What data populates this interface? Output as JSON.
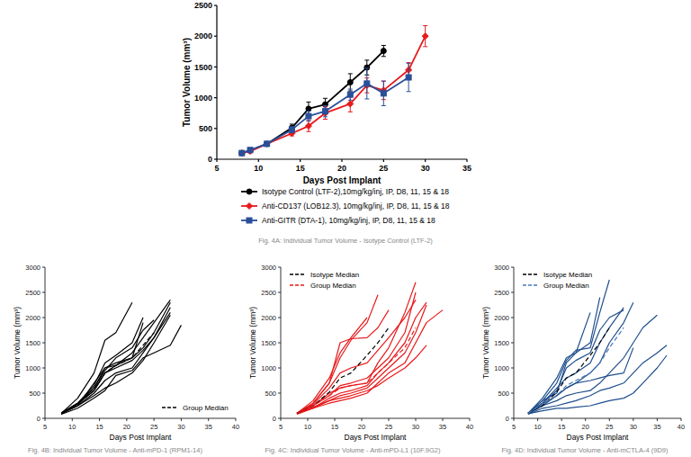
{
  "chart_data": [
    {
      "type": "line",
      "title": "Fig. 4A: Individual Tumor Volume - Isotype Control (LTF-2)",
      "x_label": "Days Post Implant",
      "y_label": "Tumor Volume (mm³)",
      "xlim": [
        5,
        35
      ],
      "ylim": [
        0,
        2500
      ],
      "xticks": [
        5,
        10,
        15,
        20,
        25,
        30,
        35
      ],
      "yticks": [
        0,
        500,
        1000,
        1500,
        2000,
        2500
      ],
      "grid": false,
      "legend": "bottom",
      "series": [
        {
          "name": "Isotype Control (LTF-2),10mg/kg/inj, IP, D8, 11, 15 & 18",
          "color": "#000000",
          "marker": "circle",
          "x": [
            8,
            9,
            11,
            14,
            16,
            18,
            21,
            23,
            25
          ],
          "values": [
            100,
            140,
            250,
            510,
            820,
            890,
            1250,
            1490,
            1760
          ],
          "errors": [
            20,
            25,
            30,
            60,
            110,
            100,
            140,
            120,
            90
          ]
        },
        {
          "name": "Anti-CD137 (LOB12.3), 10mg/kg/inj, IP, D8, 11, 15 & 18",
          "color": "#e8191b",
          "marker": "diamond",
          "x": [
            8,
            9,
            11,
            14,
            16,
            18,
            21,
            23,
            25,
            28,
            30
          ],
          "values": [
            100,
            130,
            250,
            420,
            540,
            750,
            900,
            1200,
            1120,
            1450,
            2000
          ],
          "errors": [
            10,
            15,
            20,
            40,
            90,
            100,
            130,
            120,
            150,
            120,
            170
          ]
        },
        {
          "name": "Anti-GITR (DTA-1), 10mg/kg/inj, IP, D8, 11, 15 & 18",
          "color": "#2a4f9a",
          "marker": "square",
          "x": [
            8,
            9,
            11,
            14,
            16,
            18,
            21,
            23,
            25,
            28
          ],
          "values": [
            100,
            150,
            250,
            480,
            700,
            780,
            1050,
            1230,
            1070,
            1330
          ],
          "errors": [
            10,
            15,
            20,
            50,
            80,
            90,
            90,
            250,
            200,
            230
          ]
        }
      ]
    },
    {
      "type": "line",
      "title": "Fig. 4B: Individual Tumor Volume - Anti-mPD-1 (RPM1-14)",
      "x_label": "Days Post Implant",
      "y_label": "Tumor Volume (mm³)",
      "xlim": [
        5,
        40
      ],
      "ylim": [
        0,
        3000
      ],
      "xticks": [
        5,
        10,
        15,
        20,
        25,
        30,
        35,
        40
      ],
      "yticks": [
        0,
        500,
        1000,
        1500,
        2000,
        2500,
        3000
      ],
      "grid": false,
      "legend": "lower right",
      "series": [
        {
          "color": "#000000",
          "x": [
            8,
            11,
            14,
            16,
            18,
            21
          ],
          "values": [
            100,
            400,
            900,
            1550,
            1700,
            2300
          ]
        },
        {
          "color": "#000000",
          "x": [
            8,
            11,
            14,
            16,
            18,
            21,
            23,
            25,
            28
          ],
          "values": [
            100,
            300,
            600,
            1000,
            1050,
            1300,
            1600,
            1900,
            2350
          ]
        },
        {
          "color": "#000000",
          "x": [
            8,
            11,
            14,
            16,
            18,
            21,
            23,
            25,
            28
          ],
          "values": [
            90,
            280,
            550,
            900,
            1050,
            1200,
            1400,
            1700,
            2300
          ]
        },
        {
          "color": "#000000",
          "x": [
            8,
            11,
            14,
            16,
            18,
            21,
            23
          ],
          "values": [
            100,
            300,
            650,
            1100,
            1250,
            1500,
            2000
          ]
        },
        {
          "color": "#000000",
          "x": [
            8,
            11,
            14,
            16,
            18,
            21,
            23,
            25,
            28
          ],
          "values": [
            100,
            250,
            500,
            750,
            900,
            1000,
            1300,
            1600,
            2200
          ]
        },
        {
          "color": "#000000",
          "x": [
            8,
            11,
            14,
            16,
            18,
            21,
            23,
            25,
            28,
            30
          ],
          "values": [
            80,
            200,
            400,
            550,
            850,
            950,
            1200,
            1300,
            1450,
            1850
          ]
        },
        {
          "color": "#000000",
          "x": [
            8,
            11,
            14,
            16,
            18,
            21,
            23,
            25,
            28
          ],
          "values": [
            100,
            250,
            450,
            600,
            700,
            900,
            1150,
            1500,
            2050
          ]
        },
        {
          "color": "#000000",
          "x": [
            8,
            11,
            14,
            16,
            18,
            21,
            23,
            25,
            28
          ],
          "values": [
            110,
            300,
            550,
            900,
            1000,
            1150,
            1350,
            1600,
            2100
          ]
        },
        {
          "color": "#000000",
          "x": [
            8,
            11,
            14,
            16,
            18,
            21,
            23
          ],
          "values": [
            90,
            250,
            700,
            1000,
            1100,
            1200,
            1900
          ]
        },
        {
          "color": "#000000",
          "x": [
            8,
            11,
            14,
            16,
            18,
            21,
            23,
            25
          ],
          "values": [
            100,
            300,
            600,
            950,
            1200,
            1400,
            1750,
            1950
          ]
        },
        {
          "name": "Group Median",
          "color": "#000000",
          "line_style": "dashed",
          "x": [
            8,
            11,
            14,
            16,
            18,
            21,
            23,
            25
          ],
          "values": [
            100,
            290,
            560,
            900,
            1050,
            1200,
            1450,
            1700
          ]
        }
      ]
    },
    {
      "type": "line",
      "title": "Fig. 4C: Individual Tumor Volume - Anti-mPD-L1 (10F.9G2)",
      "x_label": "Days Post Implant",
      "y_label": "Tumor Volume (mm³)",
      "xlim": [
        5,
        40
      ],
      "ylim": [
        0,
        3000
      ],
      "xticks": [
        5,
        10,
        15,
        20,
        25,
        30,
        35,
        40
      ],
      "yticks": [
        0,
        500,
        1000,
        1500,
        2000,
        2500,
        3000
      ],
      "grid": false,
      "legend": "upper left",
      "series": [
        {
          "color": "#e8191b",
          "x": [
            8,
            11,
            14,
            16,
            18,
            21,
            23
          ],
          "values": [
            100,
            300,
            700,
            1200,
            1550,
            1900,
            2450
          ]
        },
        {
          "color": "#e8191b",
          "x": [
            8,
            11,
            14,
            16,
            18,
            21,
            23,
            25,
            28,
            30
          ],
          "values": [
            100,
            250,
            500,
            600,
            650,
            700,
            1100,
            1400,
            2100,
            2700
          ]
        },
        {
          "color": "#e8191b",
          "x": [
            8,
            11,
            14,
            16,
            18,
            21,
            23,
            25,
            28,
            30,
            32
          ],
          "values": [
            90,
            200,
            400,
            500,
            550,
            650,
            900,
            1100,
            1500,
            2000,
            2300
          ]
        },
        {
          "color": "#e8191b",
          "x": [
            8,
            11,
            14,
            16,
            18,
            21,
            23,
            25,
            28,
            30,
            32,
            35
          ],
          "values": [
            80,
            200,
            300,
            350,
            400,
            500,
            700,
            900,
            1100,
            1500,
            1900,
            2150
          ]
        },
        {
          "color": "#e8191b",
          "x": [
            8,
            11,
            14,
            16,
            18,
            21,
            23,
            25
          ],
          "values": [
            100,
            300,
            700,
            1500,
            1580,
            1600,
            1800,
            2150
          ]
        },
        {
          "color": "#e8191b",
          "x": [
            8,
            11,
            14,
            16,
            18,
            21,
            23,
            25,
            28,
            30
          ],
          "values": [
            100,
            250,
            450,
            650,
            700,
            800,
            1000,
            1200,
            1700,
            2500
          ]
        },
        {
          "color": "#e8191b",
          "x": [
            8,
            11,
            14,
            16,
            18,
            21,
            23,
            25,
            28,
            30,
            32
          ],
          "values": [
            100,
            200,
            350,
            450,
            500,
            600,
            800,
            1000,
            1300,
            1700,
            2250
          ]
        },
        {
          "color": "#e8191b",
          "x": [
            8,
            11,
            14,
            16,
            18,
            21,
            23,
            25,
            28,
            30,
            32
          ],
          "values": [
            90,
            220,
            350,
            400,
            450,
            550,
            650,
            800,
            1000,
            1200,
            1450
          ]
        },
        {
          "color": "#e8191b",
          "x": [
            8,
            11,
            14,
            16,
            18,
            21,
            23,
            25,
            28,
            30
          ],
          "values": [
            100,
            280,
            600,
            900,
            1000,
            1100,
            1350,
            1600,
            2000,
            2350
          ]
        },
        {
          "color": "#e8191b",
          "x": [
            8,
            11,
            14,
            16,
            18,
            21
          ],
          "values": [
            100,
            350,
            800,
            1300,
            1600,
            2000
          ]
        },
        {
          "name": "Isotype Median",
          "color": "#000000",
          "line_style": "dashed",
          "x": [
            8,
            11,
            14,
            16,
            18,
            21,
            23,
            25
          ],
          "values": [
            100,
            250,
            520,
            800,
            900,
            1250,
            1500,
            1800
          ]
        },
        {
          "name": "Group Median",
          "color": "#e8191b",
          "line_style": "dashed",
          "x": [
            8,
            11,
            14,
            16,
            18,
            21,
            23,
            25,
            28,
            30
          ],
          "values": [
            100,
            250,
            450,
            600,
            650,
            700,
            900,
            1100,
            1400,
            1800
          ]
        }
      ]
    },
    {
      "type": "line",
      "title": "Fig. 4D: Individual Tumor Volume - Anti-mCTLA-4 (9D9)",
      "x_label": "Days Post Implant",
      "y_label": "Tumor Volume (mm³)",
      "xlim": [
        5,
        40
      ],
      "ylim": [
        0,
        3000
      ],
      "xticks": [
        5,
        10,
        15,
        20,
        25,
        30,
        35,
        40
      ],
      "yticks": [
        0,
        500,
        1000,
        1500,
        2000,
        2500,
        3000
      ],
      "grid": false,
      "legend": "upper left",
      "series": [
        {
          "color": "#1f4e8c",
          "x": [
            8,
            11,
            14,
            16,
            18,
            21,
            23,
            25
          ],
          "values": [
            100,
            350,
            700,
            1150,
            1350,
            1400,
            2100,
            2750
          ]
        },
        {
          "color": "#1f4e8c",
          "x": [
            8,
            11,
            14,
            16,
            18,
            21,
            23
          ],
          "values": [
            100,
            400,
            800,
            1200,
            1300,
            1500,
            2400
          ]
        },
        {
          "color": "#1f4e8c",
          "x": [
            8,
            11,
            14,
            16,
            18,
            21,
            23,
            25,
            28
          ],
          "values": [
            100,
            300,
            600,
            800,
            900,
            1100,
            1500,
            1800,
            2200
          ]
        },
        {
          "color": "#1f4e8c",
          "x": [
            8,
            11,
            14,
            16,
            18,
            21,
            23,
            25,
            28,
            30
          ],
          "values": [
            90,
            250,
            450,
            600,
            700,
            900,
            1100,
            1500,
            1900,
            2300
          ]
        },
        {
          "color": "#1f4e8c",
          "x": [
            8,
            11,
            14,
            16,
            18,
            21,
            23,
            25,
            28,
            30,
            32,
            35
          ],
          "values": [
            100,
            250,
            350,
            450,
            500,
            550,
            700,
            900,
            1200,
            1500,
            1800,
            2050
          ]
        },
        {
          "color": "#1f4e8c",
          "x": [
            8,
            11,
            14,
            16,
            18,
            21,
            23,
            25,
            28,
            30,
            32,
            35,
            37
          ],
          "values": [
            80,
            200,
            250,
            300,
            350,
            450,
            550,
            600,
            700,
            900,
            1100,
            1300,
            1450
          ]
        },
        {
          "color": "#1f4e8c",
          "x": [
            8,
            11,
            14,
            16,
            18,
            21,
            23,
            25,
            28,
            30,
            32,
            35,
            37
          ],
          "values": [
            90,
            150,
            200,
            200,
            220,
            250,
            300,
            350,
            400,
            500,
            700,
            1000,
            1250
          ]
        },
        {
          "color": "#1f4e8c",
          "x": [
            8,
            11,
            14,
            16,
            18,
            21,
            23,
            25,
            28,
            30
          ],
          "values": [
            100,
            280,
            450,
            600,
            700,
            750,
            800,
            850,
            900,
            1400
          ]
        },
        {
          "color": "#1f4e8c",
          "x": [
            8,
            11,
            14,
            16,
            18,
            21,
            23,
            25,
            28
          ],
          "values": [
            100,
            300,
            550,
            1000,
            1150,
            1300,
            1750,
            2000,
            2150
          ]
        },
        {
          "color": "#1f4e8c",
          "x": [
            8,
            11,
            14,
            16,
            18,
            21
          ],
          "values": [
            100,
            350,
            500,
            1100,
            1300,
            2100
          ]
        },
        {
          "name": "Isotype Median",
          "color": "#000000",
          "line_style": "dashed",
          "x": [
            8,
            11,
            14,
            16,
            18,
            21,
            23,
            25
          ],
          "values": [
            100,
            250,
            520,
            800,
            900,
            1250,
            1500,
            1800
          ]
        },
        {
          "name": "Group Median",
          "color": "#4a78b8",
          "line_style": "dashed",
          "x": [
            8,
            11,
            14,
            16,
            18,
            21,
            23,
            25,
            28
          ],
          "values": [
            100,
            280,
            450,
            650,
            750,
            900,
            1100,
            1400,
            1800
          ]
        }
      ]
    }
  ]
}
